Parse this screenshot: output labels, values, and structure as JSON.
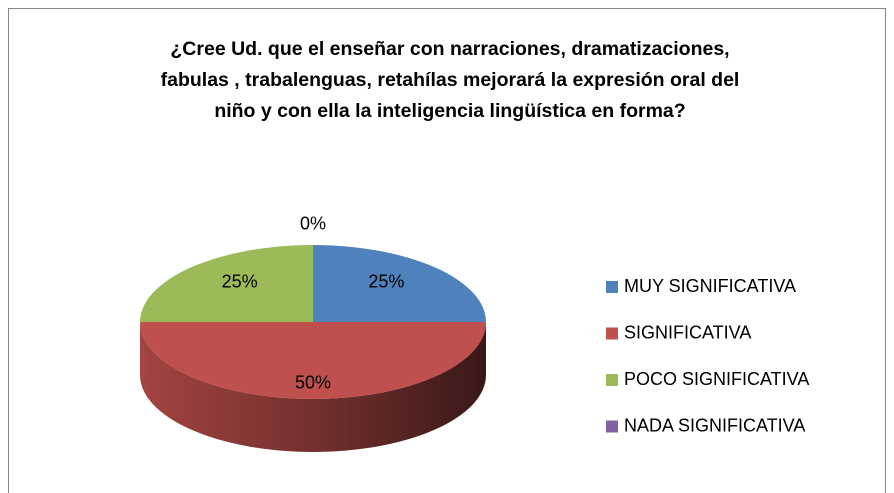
{
  "chart_data": {
    "type": "pie",
    "title": "¿Cree Ud. que el enseñar con narraciones, dramatizaciones,\nfabulas , trabalenguas, retahílas mejorará la expresión oral del\nniño  y con ella la inteligencia lingüística en forma?",
    "categories": [
      "MUY SIGNIFICATIVA",
      "SIGNIFICATIVA",
      "POCO SIGNIFICATIVA",
      "NADA SIGNIFICATIVA"
    ],
    "values": [
      25,
      50,
      25,
      0
    ],
    "value_labels": [
      "25%",
      "50%",
      "25%",
      "0%"
    ],
    "colors": [
      "#4f81bd",
      "#c0504d",
      "#9bbb59",
      "#8064a2"
    ],
    "legend": "right"
  }
}
